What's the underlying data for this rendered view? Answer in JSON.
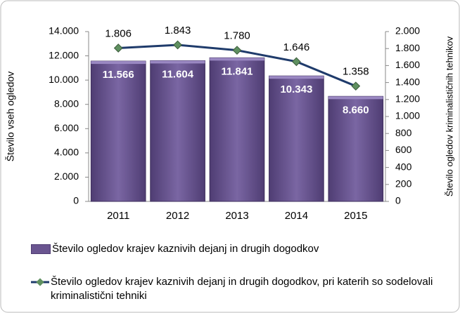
{
  "chart_data": {
    "type": "bar",
    "ylabel": "Število vseh ogledov",
    "y2label": "Število ogledov kriminalističnih tehnikov",
    "categories": [
      "2011",
      "2012",
      "2013",
      "2014",
      "2015"
    ],
    "series": [
      {
        "name": "Število ogledov krajev kaznivih dejanj in drugih dogodkov",
        "type": "bar",
        "color": "#6a5590",
        "values": [
          11566,
          11604,
          11841,
          10343,
          8660
        ],
        "value_labels": [
          "11.566",
          "11.604",
          "11.841",
          "10.343",
          "8.660"
        ]
      },
      {
        "name": "Število ogledov krajev kaznivih dejanj in drugih dogodkov, pri katerih so sodelovali kriminalistični tehniki",
        "type": "line",
        "axis": "y2",
        "color": "#1f3b6b",
        "marker_color": "#5f9060",
        "values": [
          1806,
          1843,
          1780,
          1646,
          1358
        ],
        "value_labels": [
          "1.806",
          "1.843",
          "1.780",
          "1.646",
          "1.358"
        ]
      }
    ],
    "ylim": [
      0,
      14000
    ],
    "yticks": [
      0,
      {
        "value": 2000,
        "label": "2.000"
      },
      {
        "value": 4000,
        "label": "4.000"
      },
      {
        "value": 6000,
        "label": "6.000"
      },
      {
        "value": 8000,
        "label": "8.000"
      },
      {
        "value": 10000,
        "label": "10.000"
      },
      {
        "value": 12000,
        "label": "12.000"
      },
      {
        "value": 14000,
        "label": "14.000"
      }
    ],
    "y2lim": [
      0,
      2000
    ],
    "y2ticks": [
      0,
      200,
      400,
      600,
      800,
      {
        "value": 1000,
        "label": "1.000"
      },
      {
        "value": 1200,
        "label": "1.200"
      },
      {
        "value": 1400,
        "label": "1.400"
      },
      {
        "value": 1600,
        "label": "1.600"
      },
      {
        "value": 1800,
        "label": "1.800"
      },
      {
        "value": 2000,
        "label": "2.000"
      }
    ],
    "legend": "bottom"
  }
}
